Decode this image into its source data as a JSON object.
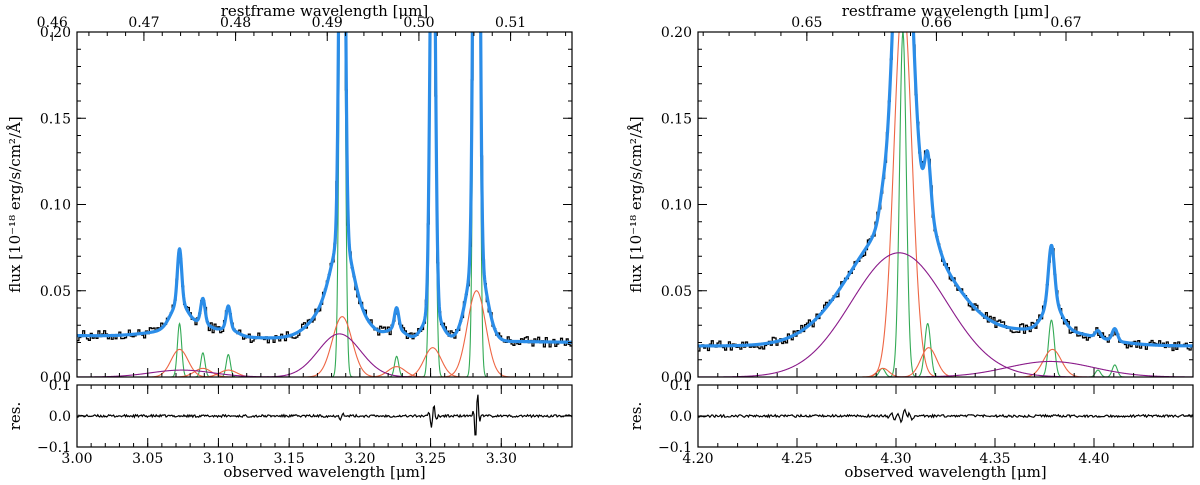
{
  "chart_data": [
    {
      "type": "line",
      "panel": "left",
      "top_axis_title": "restframe wavelength [μm]",
      "bottom_axis_title": "observed wavelength [μm]",
      "ylabel": "flux [10⁻¹⁸ erg/s/cm²/Å]",
      "res_label": "res.",
      "xlim": [
        3.0,
        3.35
      ],
      "ylim": [
        0.0,
        0.2
      ],
      "res_ylim": [
        -0.1,
        0.1
      ],
      "x_ticks": [
        "3.00",
        "3.05",
        "3.10",
        "3.15",
        "3.20",
        "3.25",
        "3.30"
      ],
      "x_tick_values": [
        3.0,
        3.05,
        3.1,
        3.15,
        3.2,
        3.25,
        3.3
      ],
      "top_ticks": [
        "0.46",
        "0.47",
        "0.48",
        "0.49",
        "0.50",
        "0.51"
      ],
      "top_tick_values": [
        0.46,
        0.47,
        0.48,
        0.49,
        0.5,
        0.51
      ],
      "top_range": [
        0.4627,
        0.5167
      ],
      "y_ticks": [
        "0.00",
        "0.05",
        "0.10",
        "0.15",
        "0.20"
      ],
      "y_tick_values": [
        0.0,
        0.05,
        0.1,
        0.15,
        0.2
      ],
      "res_ticks": [
        "−0.1",
        "0.0",
        "0.1"
      ],
      "res_tick_values": [
        -0.1,
        0.0,
        0.1
      ],
      "continuum": {
        "a": 0.024,
        "b": -0.011
      },
      "components": [
        {
          "kind": "narrow",
          "color": "#33aa55",
          "center": 3.0725,
          "amp": 0.031,
          "sigma": 0.0015
        },
        {
          "kind": "narrow",
          "color": "#33aa55",
          "center": 3.089,
          "amp": 0.014,
          "sigma": 0.0015
        },
        {
          "kind": "narrow",
          "color": "#33aa55",
          "center": 3.107,
          "amp": 0.013,
          "sigma": 0.0015
        },
        {
          "kind": "narrow",
          "color": "#33aa55",
          "center": 3.1875,
          "amp": 0.4,
          "sigma": 0.0017
        },
        {
          "kind": "narrow",
          "color": "#33aa55",
          "center": 3.226,
          "amp": 0.012,
          "sigma": 0.0015
        },
        {
          "kind": "narrow",
          "color": "#33aa55",
          "center": 3.2515,
          "amp": 0.3,
          "sigma": 0.0017
        },
        {
          "kind": "narrow",
          "color": "#33aa55",
          "center": 3.2825,
          "amp": 0.6,
          "sigma": 0.0017
        },
        {
          "kind": "medium",
          "color": "#ee6644",
          "center": 3.0725,
          "amp": 0.016,
          "sigma": 0.006
        },
        {
          "kind": "medium",
          "color": "#ee6644",
          "center": 3.089,
          "amp": 0.005,
          "sigma": 0.006
        },
        {
          "kind": "medium",
          "color": "#ee6644",
          "center": 3.107,
          "amp": 0.004,
          "sigma": 0.006
        },
        {
          "kind": "medium",
          "color": "#ee6644",
          "center": 3.1875,
          "amp": 0.035,
          "sigma": 0.007
        },
        {
          "kind": "medium",
          "color": "#ee6644",
          "center": 3.226,
          "amp": 0.006,
          "sigma": 0.006
        },
        {
          "kind": "medium",
          "color": "#ee6644",
          "center": 3.2515,
          "amp": 0.017,
          "sigma": 0.006
        },
        {
          "kind": "medium",
          "color": "#ee6644",
          "center": 3.2825,
          "amp": 0.05,
          "sigma": 0.0065
        },
        {
          "kind": "broad",
          "color": "#8a1a8a",
          "center": 3.074,
          "amp": 0.004,
          "sigma": 0.022
        },
        {
          "kind": "broad",
          "color": "#8a1a8a",
          "center": 3.1855,
          "amp": 0.025,
          "sigma": 0.015
        }
      ],
      "residual_features": [
        {
          "center": 3.187,
          "amp": 0.012,
          "sigma": 0.0018
        },
        {
          "center": 3.2515,
          "amp": 0.045,
          "sigma": 0.0016
        },
        {
          "center": 3.2825,
          "amp": 0.09,
          "sigma": 0.0014
        }
      ],
      "series_colors": {
        "data": "#000000",
        "model": "#2b8de8"
      }
    },
    {
      "type": "line",
      "panel": "right",
      "top_axis_title": "restframe wavelength [μm]",
      "bottom_axis_title": "observed wavelength [μm]",
      "ylabel": "flux [10⁻¹⁸ erg/s/cm²/Å]",
      "res_label": "res.",
      "xlim": [
        4.2,
        4.45
      ],
      "ylim": [
        0.0,
        0.2
      ],
      "res_ylim": [
        -0.1,
        0.1
      ],
      "x_ticks": [
        "4.20",
        "4.25",
        "4.30",
        "4.35",
        "4.40"
      ],
      "x_tick_values": [
        4.2,
        4.25,
        4.3,
        4.35,
        4.4
      ],
      "top_ticks": [
        "0.65",
        "0.66",
        "0.67"
      ],
      "top_tick_values": [
        0.65,
        0.66,
        0.67
      ],
      "top_range": [
        0.6416,
        0.6798
      ],
      "y_ticks": [
        "0.00",
        "0.05",
        "0.10",
        "0.15",
        "0.20"
      ],
      "y_tick_values": [
        0.0,
        0.05,
        0.1,
        0.15,
        0.2
      ],
      "res_ticks": [
        "−0.1",
        "0.0",
        "0.1"
      ],
      "res_tick_values": [
        -0.1,
        0.0,
        0.1
      ],
      "continuum": {
        "a": 0.018,
        "b": 0.0
      },
      "components": [
        {
          "kind": "narrow",
          "color": "#33aa55",
          "center": 4.293,
          "amp": 0.005,
          "sigma": 0.0015
        },
        {
          "kind": "narrow",
          "color": "#33aa55",
          "center": 4.3035,
          "amp": 0.2,
          "sigma": 0.0017
        },
        {
          "kind": "narrow",
          "color": "#33aa55",
          "center": 4.316,
          "amp": 0.031,
          "sigma": 0.0015
        },
        {
          "kind": "narrow",
          "color": "#33aa55",
          "center": 4.3785,
          "amp": 0.033,
          "sigma": 0.0015
        },
        {
          "kind": "narrow",
          "color": "#33aa55",
          "center": 4.402,
          "amp": 0.004,
          "sigma": 0.0013
        },
        {
          "kind": "narrow",
          "color": "#33aa55",
          "center": 4.4105,
          "amp": 0.007,
          "sigma": 0.0013
        },
        {
          "kind": "medium",
          "color": "#ee6644",
          "center": 4.2935,
          "amp": 0.005,
          "sigma": 0.003
        },
        {
          "kind": "medium",
          "color": "#ee6644",
          "center": 4.3035,
          "amp": 0.22,
          "sigma": 0.0045
        },
        {
          "kind": "medium",
          "color": "#ee6644",
          "center": 4.3165,
          "amp": 0.017,
          "sigma": 0.004
        },
        {
          "kind": "medium",
          "color": "#ee6644",
          "center": 4.379,
          "amp": 0.016,
          "sigma": 0.0045
        },
        {
          "kind": "broad",
          "color": "#8a1a8a",
          "center": 4.3015,
          "amp": 0.072,
          "sigma": 0.024
        },
        {
          "kind": "broad",
          "color": "#8a1a8a",
          "center": 4.378,
          "amp": 0.009,
          "sigma": 0.022
        }
      ],
      "residual_features": [
        {
          "center": 4.2985,
          "amp": -0.012,
          "sigma": 0.0016
        },
        {
          "center": 4.3035,
          "amp": 0.025,
          "sigma": 0.0016
        },
        {
          "center": 4.3075,
          "amp": -0.014,
          "sigma": 0.0016
        }
      ],
      "series_colors": {
        "data": "#000000",
        "model": "#2b8de8"
      }
    }
  ]
}
